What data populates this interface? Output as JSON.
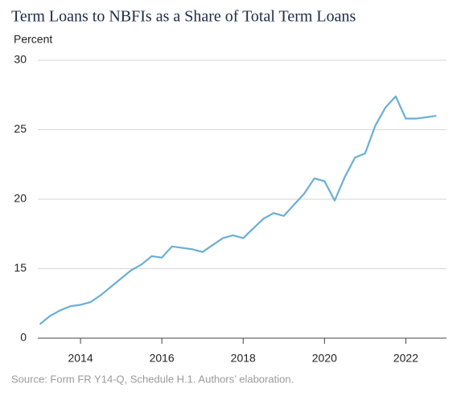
{
  "chart_data": {
    "type": "line",
    "title": "Term Loans to NBFIs as a Share of Total Term Loans",
    "y_label": "Percent",
    "source": "Source: Form FR Y14-Q, Schedule H.1. Authors’ elaboration.",
    "x": [
      2013,
      2013.25,
      2013.5,
      2013.75,
      2014,
      2014.25,
      2014.5,
      2014.75,
      2015,
      2015.25,
      2015.5,
      2015.75,
      2016,
      2016.25,
      2016.5,
      2016.75,
      2017,
      2017.25,
      2017.5,
      2017.75,
      2018,
      2018.25,
      2018.5,
      2018.75,
      2019,
      2019.25,
      2019.5,
      2019.75,
      2020,
      2020.25,
      2020.5,
      2020.75,
      2021,
      2021.25,
      2021.5,
      2021.75,
      2022,
      2022.25,
      2022.5,
      2022.75
    ],
    "values": [
      11.0,
      11.6,
      12.0,
      12.3,
      12.4,
      12.6,
      13.1,
      13.7,
      14.3,
      14.9,
      15.3,
      15.9,
      15.8,
      16.6,
      16.5,
      16.4,
      16.2,
      16.7,
      17.2,
      17.4,
      17.2,
      17.9,
      18.6,
      19.0,
      18.8,
      19.6,
      20.4,
      21.5,
      21.3,
      19.9,
      21.6,
      23.0,
      23.3,
      25.3,
      26.6,
      27.4,
      25.8,
      25.8,
      25.9,
      26.0
    ],
    "color": "#6aaed6",
    "xlim": [
      2012.95,
      2023.0
    ],
    "xticks": [
      2014,
      2016,
      2018,
      2020,
      2022
    ],
    "ylim": [
      10,
      30
    ],
    "yticks": [
      {
        "value": 10,
        "label": "0"
      },
      15,
      20,
      25,
      30
    ],
    "grid": true
  }
}
